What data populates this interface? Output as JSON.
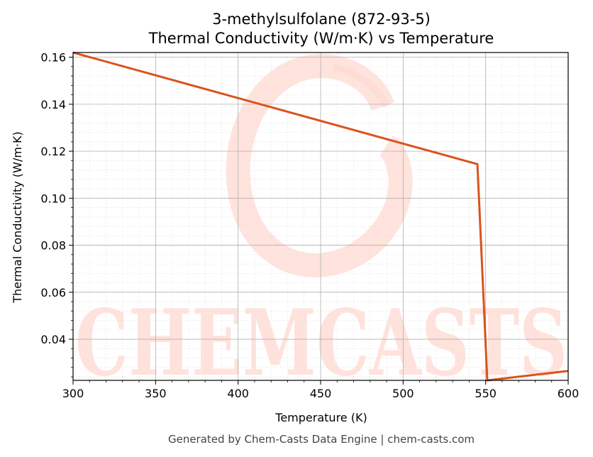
{
  "chart_data": {
    "type": "line",
    "title": "3-methylsulfolane (872-93-5)",
    "subtitle": "Thermal Conductivity (W/m·K) vs Temperature",
    "xlabel": "Temperature (K)",
    "ylabel": "Thermal Conductivity (W/m·K)",
    "xlim": [
      300,
      600
    ],
    "ylim": [
      0.0225,
      0.162
    ],
    "xticks": [
      300,
      350,
      400,
      450,
      500,
      550,
      600
    ],
    "xtick_labels": [
      "300",
      "350",
      "400",
      "450",
      "500",
      "550",
      "600"
    ],
    "yticks": [
      0.04,
      0.06,
      0.08,
      0.1,
      0.12,
      0.14,
      0.16
    ],
    "ytick_labels": [
      "0.04",
      "0.06",
      "0.08",
      "0.10",
      "0.12",
      "0.14",
      "0.16"
    ],
    "grid": true,
    "legend": "none",
    "series": [
      {
        "color": "#d9531e",
        "x": [
          300,
          545,
          551,
          600
        ],
        "y": [
          0.162,
          0.1145,
          0.0225,
          0.0265
        ]
      }
    ]
  },
  "watermark": {
    "text": "CHEMCASTS",
    "color": "#ffd9d0"
  },
  "footer": "Generated by Chem-Casts Data Engine | chem-casts.com"
}
